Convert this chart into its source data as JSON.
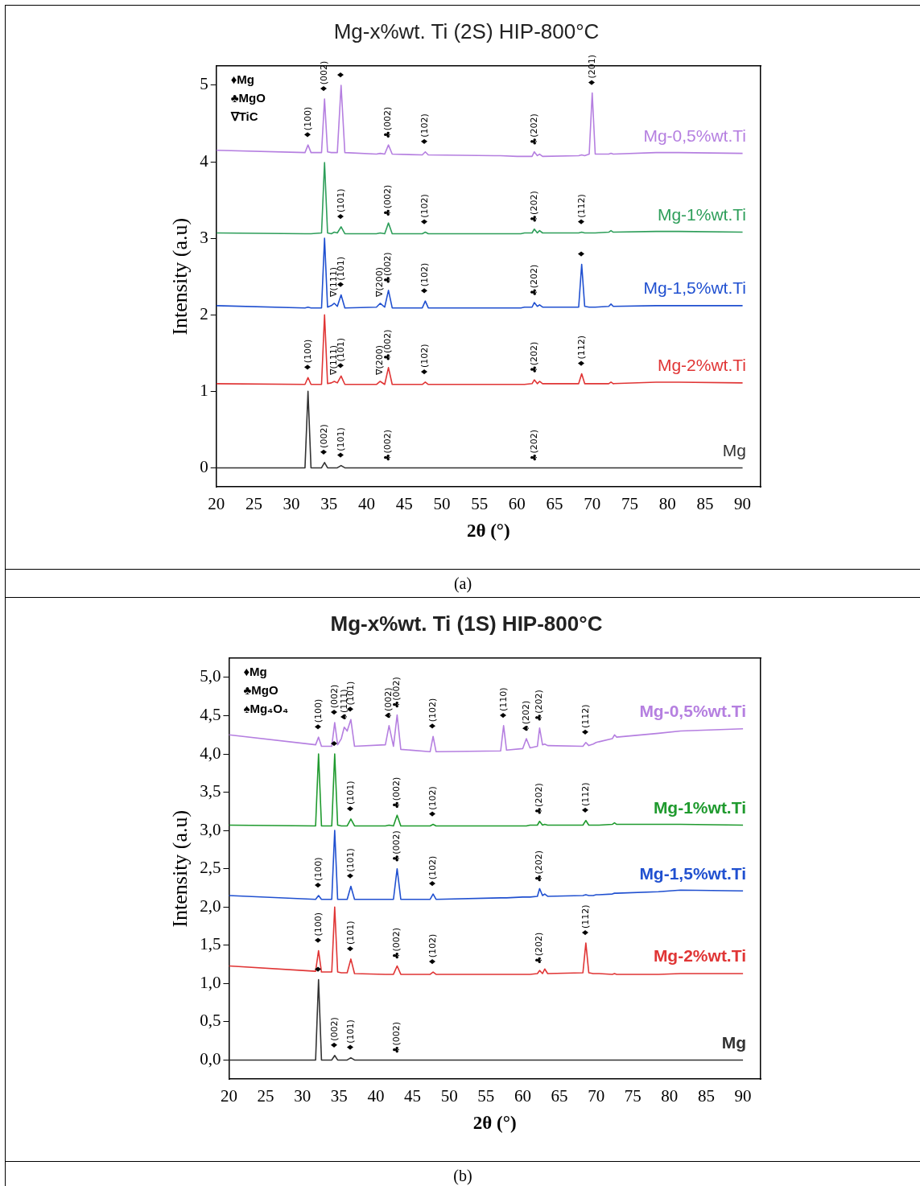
{
  "chart_data": [
    {
      "type": "line",
      "title": "Mg-x%wt. Ti (2S) HIP-800°C",
      "xlabel": "2θ (°)",
      "ylabel": "Intensity (a.u)",
      "legend": false,
      "grid": false,
      "marker": "none",
      "line_style": "solid",
      "xlim": [
        20,
        92.4
      ],
      "xticks": [
        20,
        25,
        30,
        35,
        40,
        45,
        50,
        55,
        60,
        65,
        70,
        75,
        80,
        85,
        90
      ],
      "ylim": [
        -0.25,
        5.25
      ],
      "yticks": [
        0,
        1,
        2,
        3,
        4,
        5
      ],
      "x": [
        20,
        31.8,
        32.2,
        32.6,
        34.0,
        34.4,
        34.8,
        35.3,
        35.7,
        36.1,
        36.6,
        37.1,
        41.3,
        41.8,
        42.4,
        42.9,
        43.4,
        47.4,
        47.8,
        48.2,
        57.0,
        57.4,
        57.8,
        60.0,
        60.5,
        61.0,
        62.0,
        62.3,
        62.7,
        63.0,
        63.4,
        68.2,
        68.6,
        69.0,
        69.6,
        70.0,
        70.4,
        72.2,
        72.5,
        72.8,
        78.5,
        81.5,
        90
      ],
      "series": [
        {
          "name": "Mg-0,5%wt.Ti",
          "color": "#b57fe0",
          "values": [
            4.15,
            4.12,
            4.22,
            4.12,
            4.12,
            4.82,
            4.13,
            4.12,
            4.12,
            4.12,
            5.0,
            4.12,
            4.1,
            4.11,
            4.1,
            4.22,
            4.1,
            4.09,
            4.13,
            4.09,
            4.08,
            4.08,
            4.08,
            4.07,
            4.07,
            4.07,
            4.07,
            4.13,
            4.08,
            4.1,
            4.07,
            4.08,
            4.09,
            4.08,
            4.1,
            4.9,
            4.1,
            4.1,
            4.11,
            4.1,
            4.12,
            4.12,
            4.11
          ]
        },
        {
          "name": "Mg-1%wt.Ti",
          "color": "#2e9e5a",
          "values": [
            3.07,
            3.06,
            3.06,
            3.06,
            3.07,
            3.99,
            3.07,
            3.06,
            3.08,
            3.07,
            3.15,
            3.06,
            3.06,
            3.07,
            3.06,
            3.2,
            3.06,
            3.06,
            3.08,
            3.06,
            3.06,
            3.06,
            3.06,
            3.06,
            3.06,
            3.07,
            3.07,
            3.12,
            3.07,
            3.1,
            3.07,
            3.07,
            3.08,
            3.07,
            3.07,
            3.07,
            3.07,
            3.08,
            3.1,
            3.08,
            3.09,
            3.09,
            3.08
          ]
        },
        {
          "name": "Mg-1,5%wt.Ti",
          "color": "#2050d0",
          "values": [
            2.12,
            2.09,
            2.1,
            2.09,
            2.09,
            3.0,
            2.1,
            2.12,
            2.15,
            2.11,
            2.26,
            2.09,
            2.1,
            2.15,
            2.1,
            2.32,
            2.09,
            2.09,
            2.18,
            2.09,
            2.09,
            2.09,
            2.09,
            2.09,
            2.09,
            2.1,
            2.1,
            2.16,
            2.11,
            2.13,
            2.1,
            2.1,
            2.66,
            2.11,
            2.1,
            2.1,
            2.1,
            2.11,
            2.14,
            2.11,
            2.12,
            2.12,
            2.12
          ]
        },
        {
          "name": "Mg-2%wt.Ti",
          "color": "#e03535",
          "values": [
            1.1,
            1.09,
            1.18,
            1.09,
            1.09,
            2.0,
            1.1,
            1.11,
            1.13,
            1.11,
            1.2,
            1.09,
            1.09,
            1.13,
            1.09,
            1.31,
            1.09,
            1.09,
            1.12,
            1.09,
            1.09,
            1.09,
            1.09,
            1.09,
            1.09,
            1.09,
            1.1,
            1.15,
            1.1,
            1.13,
            1.1,
            1.1,
            1.23,
            1.1,
            1.1,
            1.1,
            1.1,
            1.1,
            1.12,
            1.1,
            1.12,
            1.12,
            1.11
          ]
        },
        {
          "name": "Mg",
          "color": "#333333",
          "values": [
            0,
            0,
            1.0,
            0,
            0,
            0.07,
            0,
            0,
            0,
            0,
            0.03,
            0,
            0,
            0,
            0,
            0,
            0,
            0,
            0,
            0,
            0,
            0,
            0,
            0,
            0,
            0,
            0,
            0,
            0,
            0,
            0,
            0,
            0,
            0,
            0,
            0,
            0,
            0,
            0,
            0,
            0,
            0,
            0
          ]
        }
      ],
      "annotations": [
        "♦Mg",
        "♣MgO",
        "∇TiC",
        {
          "text": "♦(100)",
          "x": 32.2,
          "y": 4.22
        },
        {
          "text": "♦(002)",
          "x": 34.4,
          "y": 4.82
        },
        {
          "text": "♦",
          "x": 36.6,
          "y": 5.0
        },
        {
          "text": "♣(002)",
          "x": 42.9,
          "y": 4.22
        },
        {
          "text": "♦(102)",
          "x": 47.8,
          "y": 4.13
        },
        {
          "text": "♣(202)",
          "x": 62.3,
          "y": 4.13
        },
        {
          "text": "♦(201)",
          "x": 70.0,
          "y": 4.9
        },
        {
          "text": "♦(101)",
          "x": 36.6,
          "y": 3.15
        },
        {
          "text": "♣(002)",
          "x": 42.9,
          "y": 3.2
        },
        {
          "text": "♦(102)",
          "x": 47.8,
          "y": 3.08
        },
        {
          "text": "♣(202)",
          "x": 62.3,
          "y": 3.12
        },
        {
          "text": "♦(112)",
          "x": 68.6,
          "y": 3.08
        },
        {
          "text": "∇(111)",
          "x": 35.7,
          "y": 2.15
        },
        {
          "text": "♦(101)",
          "x": 36.6,
          "y": 2.26
        },
        {
          "text": "∇(200)",
          "x": 41.8,
          "y": 2.15
        },
        {
          "text": "♣(002)",
          "x": 42.9,
          "y": 2.32
        },
        {
          "text": "♦(102)",
          "x": 47.8,
          "y": 2.18
        },
        {
          "text": "♣(202)",
          "x": 62.3,
          "y": 2.16
        },
        {
          "text": "♦",
          "x": 68.6,
          "y": 2.66
        },
        {
          "text": "♦(100)",
          "x": 32.2,
          "y": 1.18
        },
        {
          "text": "∇(111)",
          "x": 35.7,
          "y": 1.13
        },
        {
          "text": "♦(101)",
          "x": 36.6,
          "y": 1.2
        },
        {
          "text": "∇(200)",
          "x": 41.8,
          "y": 1.13
        },
        {
          "text": "♣(002)",
          "x": 42.9,
          "y": 1.31
        },
        {
          "text": "♦(102)",
          "x": 47.8,
          "y": 1.12
        },
        {
          "text": "♣(202)",
          "x": 62.3,
          "y": 1.15
        },
        {
          "text": "♦(112)",
          "x": 68.6,
          "y": 1.23
        },
        {
          "text": "♦(002)",
          "x": 34.4,
          "y": 0.07
        },
        {
          "text": "♦(101)",
          "x": 36.6,
          "y": 0.03
        },
        {
          "text": "♣(002)",
          "x": 42.9,
          "y": 0
        },
        {
          "text": "♣(202)",
          "x": 62.3,
          "y": 0
        },
        "(a)"
      ]
    },
    {
      "type": "line",
      "title": "Mg-x%wt. Ti (1S) HIP-800°C",
      "xlabel": "2θ (°)",
      "ylabel": "Intensity (a.u)",
      "legend": false,
      "grid": false,
      "marker": "none",
      "line_style": "solid",
      "xlim": [
        20,
        92.4
      ],
      "xticks": [
        20,
        25,
        30,
        35,
        40,
        45,
        50,
        55,
        60,
        65,
        70,
        75,
        80,
        85,
        90
      ],
      "ylim": [
        -0.25,
        5.25
      ],
      "yticks": [
        {
          "value": 0,
          "label": "0,0"
        },
        {
          "value": 0.5,
          "label": "0,5"
        },
        {
          "value": 1,
          "label": "1,0"
        },
        {
          "value": 1.5,
          "label": "1,5"
        },
        {
          "value": 2,
          "label": "2,0"
        },
        {
          "value": 2.5,
          "label": "2,5"
        },
        {
          "value": 3,
          "label": "3,0"
        },
        {
          "value": 3.5,
          "label": "3,5"
        },
        {
          "value": 4,
          "label": "4,0"
        },
        {
          "value": 4.5,
          "label": "4,5"
        },
        {
          "value": 5,
          "label": "5,0"
        }
      ],
      "x": [
        20,
        31.8,
        32.2,
        32.6,
        34.0,
        34.4,
        34.8,
        35.3,
        35.7,
        36.1,
        36.6,
        37.1,
        41.3,
        41.8,
        42.4,
        42.9,
        43.4,
        47.4,
        47.8,
        48.2,
        57.0,
        57.4,
        57.8,
        60.0,
        60.5,
        61.0,
        62.0,
        62.3,
        62.7,
        63.0,
        63.4,
        68.2,
        68.6,
        69.0,
        69.6,
        70.0,
        70.4,
        72.2,
        72.5,
        72.8,
        78.5,
        81.5,
        90
      ],
      "series": [
        {
          "name": "Mg-0,5%wt.Ti",
          "color": "#b57fe0",
          "values": [
            4.25,
            4.12,
            4.22,
            4.1,
            4.1,
            4.41,
            4.12,
            4.2,
            4.35,
            4.3,
            4.45,
            4.1,
            4.12,
            4.37,
            4.1,
            4.51,
            4.06,
            4.03,
            4.23,
            4.03,
            4.04,
            4.37,
            4.05,
            4.07,
            4.2,
            4.08,
            4.1,
            4.34,
            4.12,
            4.13,
            4.11,
            4.1,
            4.15,
            4.11,
            4.13,
            4.15,
            4.16,
            4.2,
            4.25,
            4.22,
            4.27,
            4.3,
            4.33
          ]
        },
        {
          "name": "Mg-1%wt.Ti",
          "color": "#1f9a2e",
          "values": [
            3.07,
            3.06,
            4.0,
            3.06,
            3.06,
            4.0,
            3.07,
            3.06,
            3.06,
            3.06,
            3.15,
            3.06,
            3.06,
            3.07,
            3.06,
            3.2,
            3.06,
            3.06,
            3.08,
            3.06,
            3.06,
            3.06,
            3.06,
            3.06,
            3.06,
            3.07,
            3.07,
            3.12,
            3.07,
            3.08,
            3.07,
            3.07,
            3.13,
            3.07,
            3.07,
            3.07,
            3.07,
            3.08,
            3.1,
            3.08,
            3.08,
            3.08,
            3.07
          ]
        },
        {
          "name": "Mg-1,5%wt.Ti",
          "color": "#2050d0",
          "values": [
            2.15,
            2.1,
            2.15,
            2.1,
            2.1,
            3.0,
            2.1,
            2.1,
            2.1,
            2.1,
            2.27,
            2.1,
            2.1,
            2.1,
            2.1,
            2.5,
            2.1,
            2.1,
            2.17,
            2.1,
            2.12,
            2.12,
            2.12,
            2.13,
            2.13,
            2.13,
            2.14,
            2.24,
            2.15,
            2.17,
            2.14,
            2.15,
            2.16,
            2.15,
            2.15,
            2.16,
            2.16,
            2.17,
            2.18,
            2.18,
            2.2,
            2.22,
            2.21
          ]
        },
        {
          "name": "Mg-2%wt.Ti",
          "color": "#e03535",
          "values": [
            1.23,
            1.16,
            1.43,
            1.15,
            1.15,
            2.0,
            1.15,
            1.14,
            1.14,
            1.14,
            1.32,
            1.13,
            1.12,
            1.12,
            1.12,
            1.23,
            1.12,
            1.12,
            1.15,
            1.12,
            1.12,
            1.12,
            1.12,
            1.12,
            1.12,
            1.12,
            1.13,
            1.17,
            1.13,
            1.19,
            1.13,
            1.14,
            1.53,
            1.14,
            1.13,
            1.13,
            1.13,
            1.12,
            1.13,
            1.12,
            1.12,
            1.13,
            1.13
          ]
        },
        {
          "name": "Mg",
          "color": "#333333",
          "values": [
            0,
            0,
            1.05,
            0,
            0,
            0.06,
            0,
            0,
            0,
            0,
            0.03,
            0,
            0,
            0,
            0,
            0,
            0,
            0,
            0,
            0,
            0,
            0,
            0,
            0,
            0,
            0,
            0,
            0,
            0,
            0,
            0,
            0,
            0,
            0,
            0,
            0,
            0,
            0,
            0,
            0,
            0,
            0,
            0
          ]
        }
      ],
      "annotations": [
        "♦Mg",
        "♣MgO",
        "♠Mg₄O₄",
        {
          "text": "♦(100)",
          "x": 32.2,
          "y": 4.22
        },
        {
          "text": "♦(002)",
          "x": 34.4,
          "y": 4.41
        },
        {
          "text": "♠(111)",
          "x": 35.7,
          "y": 4.35
        },
        {
          "text": "♦(101)",
          "x": 36.6,
          "y": 4.45
        },
        {
          "text": "♠(002)",
          "x": 41.8,
          "y": 4.37
        },
        {
          "text": "♣(002)",
          "x": 42.9,
          "y": 4.51
        },
        {
          "text": "♦(102)",
          "x": 47.8,
          "y": 4.23
        },
        {
          "text": "♦(110)",
          "x": 57.4,
          "y": 4.37
        },
        {
          "text": "♠(202)",
          "x": 60.5,
          "y": 4.2
        },
        {
          "text": "♣(202)",
          "x": 62.3,
          "y": 4.34
        },
        {
          "text": "♦(112)",
          "x": 68.6,
          "y": 4.15
        },
        {
          "text": "♦",
          "x": 34.4,
          "y": 4.0
        },
        {
          "text": "♦(101)",
          "x": 36.6,
          "y": 3.15
        },
        {
          "text": "♣(002)",
          "x": 42.9,
          "y": 3.2
        },
        {
          "text": "♦(102)",
          "x": 47.8,
          "y": 3.08
        },
        {
          "text": "♣(202)",
          "x": 62.3,
          "y": 3.12
        },
        {
          "text": "♦(112)",
          "x": 68.6,
          "y": 3.13
        },
        {
          "text": "♦(100)",
          "x": 32.2,
          "y": 2.15
        },
        {
          "text": "♦(101)",
          "x": 36.6,
          "y": 2.27
        },
        {
          "text": "♣(002)",
          "x": 42.9,
          "y": 2.5
        },
        {
          "text": "♦(102)",
          "x": 47.8,
          "y": 2.17
        },
        {
          "text": "♣(202)",
          "x": 62.3,
          "y": 2.24
        },
        {
          "text": "♦(100)",
          "x": 32.2,
          "y": 1.43
        },
        {
          "text": "♦(101)",
          "x": 36.6,
          "y": 1.32
        },
        {
          "text": "♣(002)",
          "x": 42.9,
          "y": 1.23
        },
        {
          "text": "♦(102)",
          "x": 47.8,
          "y": 1.15
        },
        {
          "text": "♣(202)",
          "x": 62.3,
          "y": 1.17
        },
        {
          "text": "♦(112)",
          "x": 68.6,
          "y": 1.53
        },
        {
          "text": "♦",
          "x": 32.2,
          "y": 1.05
        },
        {
          "text": "♦(002)",
          "x": 34.4,
          "y": 0.06
        },
        {
          "text": "♦(101)",
          "x": 36.6,
          "y": 0.03
        },
        {
          "text": "♣(002)",
          "x": 42.9,
          "y": 0
        },
        "(b)"
      ]
    }
  ]
}
